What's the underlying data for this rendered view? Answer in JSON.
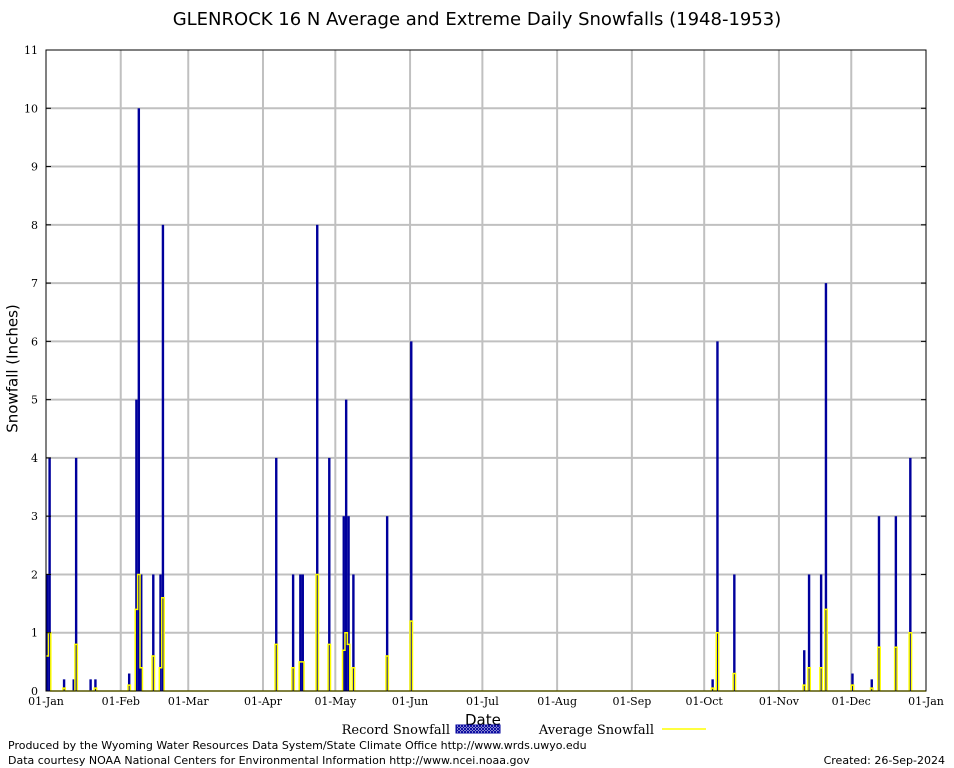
{
  "chart_data": {
    "type": "bar",
    "title": "GLENROCK 16 N Average and Extreme Daily Snowfalls (1948-1953)",
    "xlabel": "Date",
    "ylabel": "Snowfall (Inches)",
    "ylim": [
      0,
      11
    ],
    "yticks": [
      "0",
      "1",
      "2",
      "3",
      "4",
      "5",
      "6",
      "7",
      "8",
      "9",
      "10",
      "11"
    ],
    "xticks": [
      "01-Jan",
      "01-Feb",
      "01-Mar",
      "01-Apr",
      "01-May",
      "01-Jun",
      "01-Jul",
      "01-Aug",
      "01-Sep",
      "01-Oct",
      "01-Nov",
      "01-Dec",
      "01-Jan"
    ],
    "grid": true,
    "legend_placement": "bottom",
    "colors": {
      "record": "#00009c",
      "average": "#ffff00",
      "grid": "#c0c0c0"
    },
    "series": [
      {
        "name": "Record Snowfall",
        "type": "bar",
        "points": [
          [
            "01-01",
            2
          ],
          [
            "01-02",
            4
          ],
          [
            "01-08",
            0.2
          ],
          [
            "01-12",
            0.2
          ],
          [
            "01-13",
            4
          ],
          [
            "01-19",
            0.2
          ],
          [
            "01-21",
            0.2
          ],
          [
            "02-04",
            0.3
          ],
          [
            "02-07",
            5
          ],
          [
            "02-08",
            10
          ],
          [
            "02-09",
            2
          ],
          [
            "02-14",
            2
          ],
          [
            "02-17",
            2
          ],
          [
            "02-18",
            8
          ],
          [
            "04-06",
            4
          ],
          [
            "04-13",
            2
          ],
          [
            "04-16",
            2
          ],
          [
            "04-17",
            2
          ],
          [
            "04-23",
            8
          ],
          [
            "04-28",
            4
          ],
          [
            "05-04",
            3
          ],
          [
            "05-05",
            5
          ],
          [
            "05-06",
            3
          ],
          [
            "05-08",
            2
          ],
          [
            "05-22",
            3
          ],
          [
            "06-01",
            6
          ],
          [
            "10-04",
            0.2
          ],
          [
            "10-06",
            6
          ],
          [
            "10-13",
            2
          ],
          [
            "11-11",
            0.7
          ],
          [
            "11-13",
            2
          ],
          [
            "11-18",
            2
          ],
          [
            "11-20",
            7
          ],
          [
            "12-01",
            0.3
          ],
          [
            "12-09",
            0.2
          ],
          [
            "12-12",
            3
          ],
          [
            "12-19",
            3
          ],
          [
            "12-25",
            4
          ]
        ]
      },
      {
        "name": "Average Snowfall",
        "type": "line",
        "points": [
          [
            "01-01",
            0.6
          ],
          [
            "01-02",
            1.0
          ],
          [
            "01-08",
            0.05
          ],
          [
            "01-13",
            0.8
          ],
          [
            "01-21",
            0.05
          ],
          [
            "02-04",
            0.1
          ],
          [
            "02-07",
            1.4
          ],
          [
            "02-08",
            2.0
          ],
          [
            "02-09",
            0.4
          ],
          [
            "02-14",
            0.6
          ],
          [
            "02-17",
            0.4
          ],
          [
            "02-18",
            1.6
          ],
          [
            "04-06",
            0.8
          ],
          [
            "04-13",
            0.4
          ],
          [
            "04-16",
            0.5
          ],
          [
            "04-17",
            0.5
          ],
          [
            "04-23",
            2.0
          ],
          [
            "04-28",
            0.8
          ],
          [
            "05-04",
            0.7
          ],
          [
            "05-05",
            1.0
          ],
          [
            "05-06",
            0.8
          ],
          [
            "05-08",
            0.4
          ],
          [
            "05-22",
            0.6
          ],
          [
            "06-01",
            1.2
          ],
          [
            "10-04",
            0.05
          ],
          [
            "10-06",
            1.0
          ],
          [
            "10-13",
            0.3
          ],
          [
            "11-11",
            0.1
          ],
          [
            "11-13",
            0.4
          ],
          [
            "11-18",
            0.4
          ],
          [
            "11-20",
            1.4
          ],
          [
            "12-01",
            0.1
          ],
          [
            "12-09",
            0.05
          ],
          [
            "12-12",
            0.75
          ],
          [
            "12-19",
            0.75
          ],
          [
            "12-25",
            1.0
          ]
        ]
      }
    ]
  },
  "footer": {
    "produced_by": "Produced by the Wyoming Water Resources Data System/State Climate Office http://www.wrds.uwyo.edu",
    "courtesy": "Data courtesy NOAA National Centers for Environmental Information http://www.ncei.noaa.gov",
    "created": "Created:  26-Sep-2024"
  }
}
